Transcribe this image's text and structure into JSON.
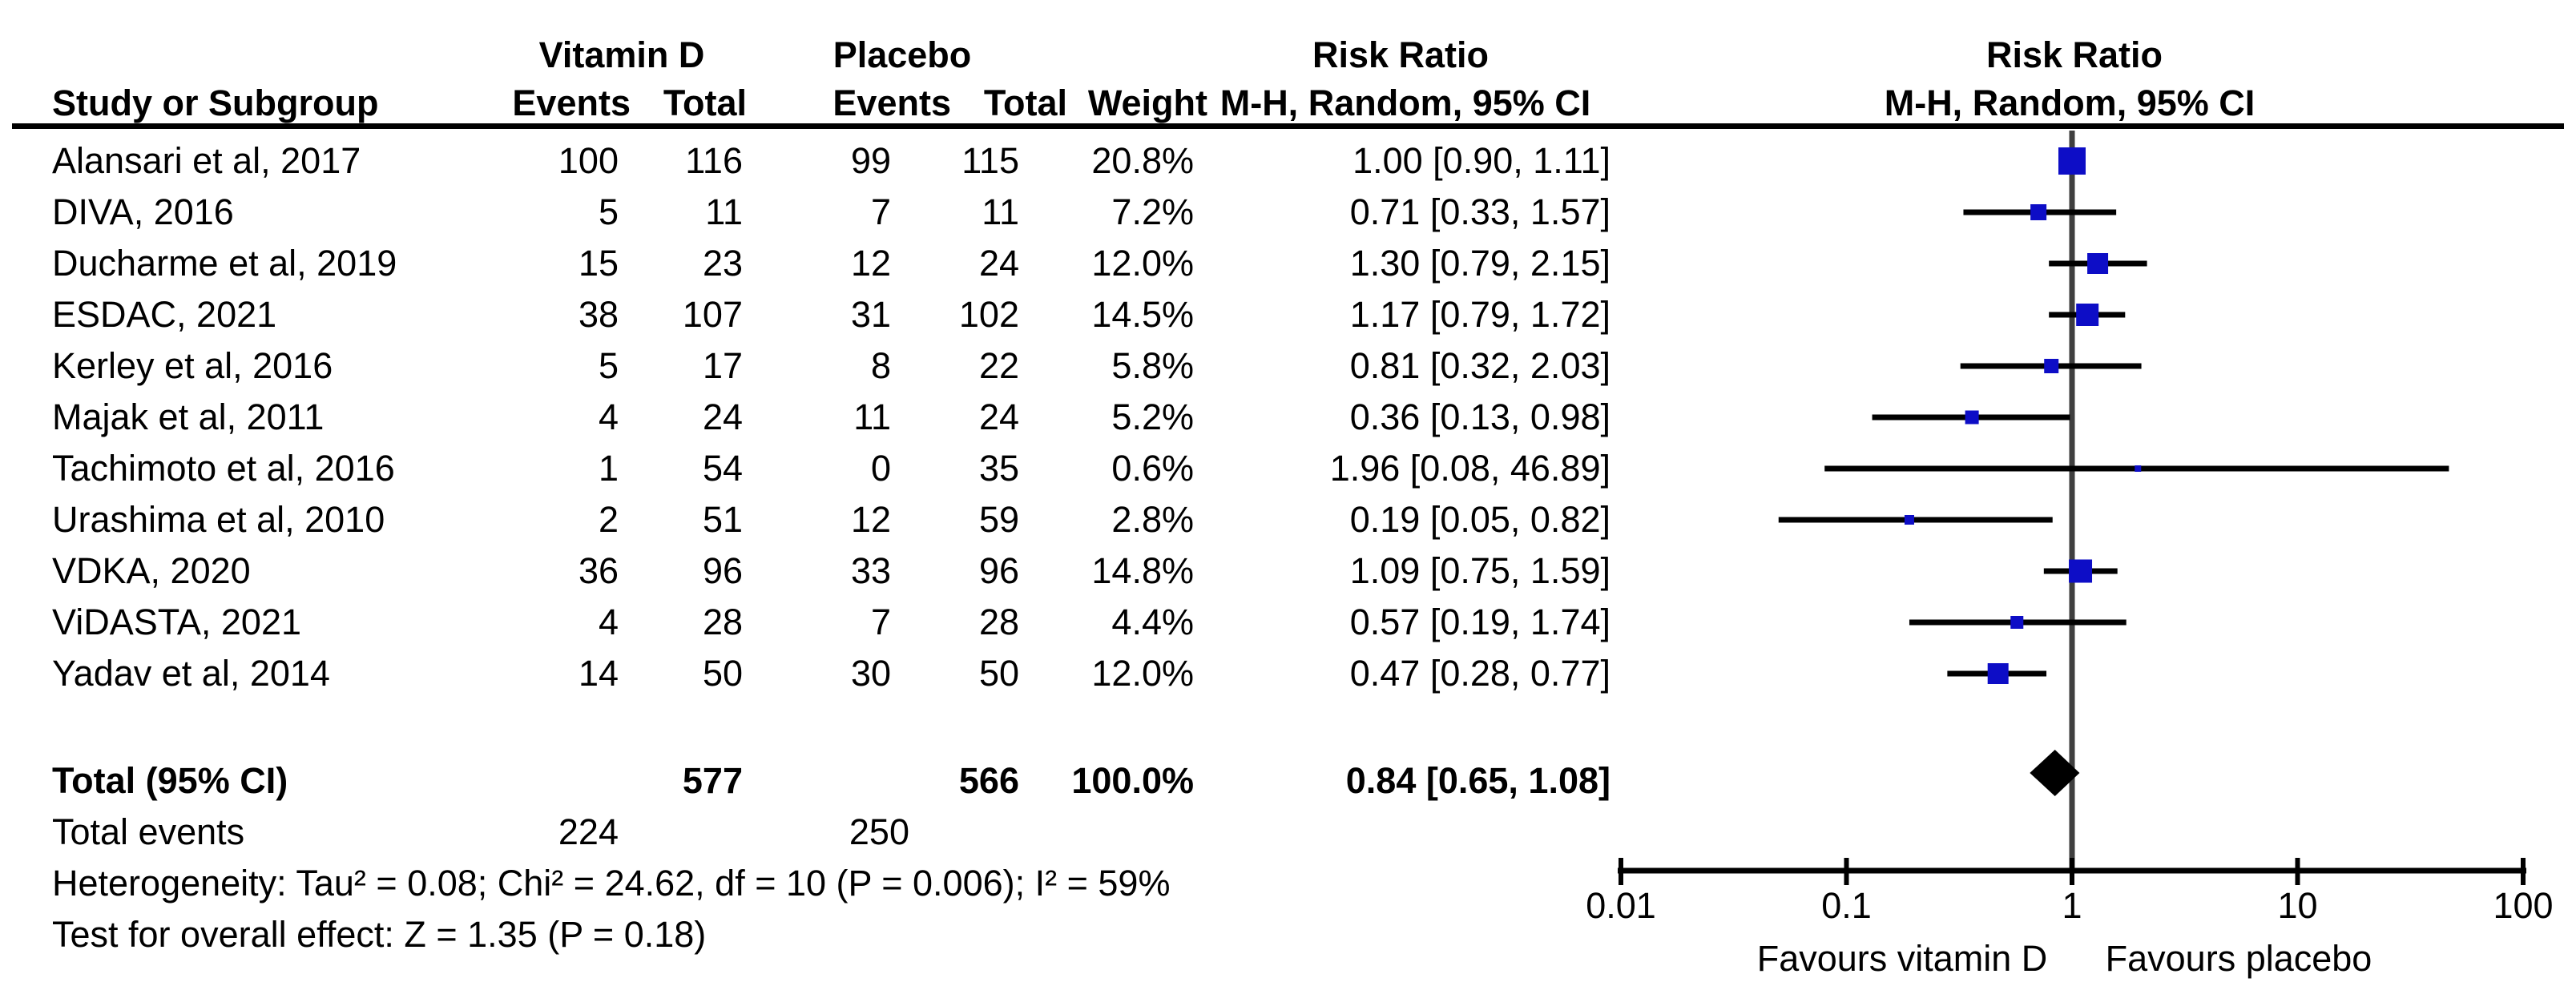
{
  "header": {
    "group1_label": "Vitamin D",
    "group2_label": "Placebo",
    "rr_text_title": "Risk Ratio",
    "rr_text_subtitle": "M-H, Random, 95% CI",
    "rr_plot_title": "Risk Ratio",
    "rr_plot_subtitle": "M-H, Random, 95% CI",
    "col_study": "Study or Subgroup",
    "col_events1": "Events",
    "col_total1": "Total",
    "col_events2": "Events",
    "col_total2": "Total",
    "col_weight": "Weight"
  },
  "studies": [
    {
      "name": "Alansari et al, 2017",
      "events1": "100",
      "total1": "116",
      "events2": "99",
      "total2": "115",
      "weight": "20.8%",
      "weight_num": 20.8,
      "rr_label": "1.00 [0.90, 1.11]",
      "rr": 1.0,
      "lo": 0.9,
      "hi": 1.11
    },
    {
      "name": "DIVA, 2016",
      "events1": "5",
      "total1": "11",
      "events2": "7",
      "total2": "11",
      "weight": "7.2%",
      "weight_num": 7.2,
      "rr_label": "0.71 [0.33, 1.57]",
      "rr": 0.71,
      "lo": 0.33,
      "hi": 1.57
    },
    {
      "name": "Ducharme et al, 2019",
      "events1": "15",
      "total1": "23",
      "events2": "12",
      "total2": "24",
      "weight": "12.0%",
      "weight_num": 12.0,
      "rr_label": "1.30 [0.79, 2.15]",
      "rr": 1.3,
      "lo": 0.79,
      "hi": 2.15
    },
    {
      "name": "ESDAC, 2021",
      "events1": "38",
      "total1": "107",
      "events2": "31",
      "total2": "102",
      "weight": "14.5%",
      "weight_num": 14.5,
      "rr_label": "1.17 [0.79, 1.72]",
      "rr": 1.17,
      "lo": 0.79,
      "hi": 1.72
    },
    {
      "name": "Kerley et al, 2016",
      "events1": "5",
      "total1": "17",
      "events2": "8",
      "total2": "22",
      "weight": "5.8%",
      "weight_num": 5.8,
      "rr_label": "0.81 [0.32, 2.03]",
      "rr": 0.81,
      "lo": 0.32,
      "hi": 2.03
    },
    {
      "name": "Majak et al, 2011",
      "events1": "4",
      "total1": "24",
      "events2": "11",
      "total2": "24",
      "weight": "5.2%",
      "weight_num": 5.2,
      "rr_label": "0.36 [0.13, 0.98]",
      "rr": 0.36,
      "lo": 0.13,
      "hi": 0.98
    },
    {
      "name": "Tachimoto et al, 2016",
      "events1": "1",
      "total1": "54",
      "events2": "0",
      "total2": "35",
      "weight": "0.6%",
      "weight_num": 0.6,
      "rr_label": "1.96 [0.08, 46.89]",
      "rr": 1.96,
      "lo": 0.08,
      "hi": 46.89
    },
    {
      "name": "Urashima et al, 2010",
      "events1": "2",
      "total1": "51",
      "events2": "12",
      "total2": "59",
      "weight": "2.8%",
      "weight_num": 2.8,
      "rr_label": "0.19 [0.05, 0.82]",
      "rr": 0.19,
      "lo": 0.05,
      "hi": 0.82
    },
    {
      "name": "VDKA, 2020",
      "events1": "36",
      "total1": "96",
      "events2": "33",
      "total2": "96",
      "weight": "14.8%",
      "weight_num": 14.8,
      "rr_label": "1.09 [0.75, 1.59]",
      "rr": 1.09,
      "lo": 0.75,
      "hi": 1.59
    },
    {
      "name": "ViDASTA, 2021",
      "events1": "4",
      "total1": "28",
      "events2": "7",
      "total2": "28",
      "weight": "4.4%",
      "weight_num": 4.4,
      "rr_label": "0.57 [0.19, 1.74]",
      "rr": 0.57,
      "lo": 0.19,
      "hi": 1.74
    },
    {
      "name": "Yadav et al, 2014",
      "events1": "14",
      "total1": "50",
      "events2": "30",
      "total2": "50",
      "weight": "12.0%",
      "weight_num": 12.0,
      "rr_label": "0.47 [0.28, 0.77]",
      "rr": 0.47,
      "lo": 0.28,
      "hi": 0.77
    }
  ],
  "totals": {
    "label": "Total (95% CI)",
    "total1": "577",
    "total2": "566",
    "weight": "100.0%",
    "rr_label": "0.84 [0.65, 1.08]",
    "rr": 0.84,
    "lo": 0.65,
    "hi": 1.08,
    "events_label": "Total events",
    "events1": "224",
    "events2": "250"
  },
  "footnotes": {
    "heterogeneity": "Heterogeneity: Tau² = 0.08; Chi² = 24.62, df = 10 (P = 0.006); I² = 59%",
    "overall_effect": "Test for overall effect: Z = 1.35 (P = 0.18)"
  },
  "axis": {
    "tick_labels": [
      "0.01",
      "0.1",
      "1",
      "10",
      "100"
    ],
    "tick_values": [
      0.01,
      0.1,
      1,
      10,
      100
    ],
    "favours_left": "Favours vitamin D",
    "favours_right": "Favours placebo"
  },
  "colors": {
    "square": "#0D0DC6",
    "ci_line": "#000000",
    "center_line": "#3F3F3F",
    "axis": "#000000",
    "diamond": "#000000"
  },
  "chart_data": {
    "type": "scatter",
    "subtype": "forest-plot-risk-ratio",
    "title": "Risk Ratio",
    "method": "M-H, Random, 95% CI",
    "x_scale": "log10",
    "x_ticks": [
      0.01,
      0.1,
      1,
      10,
      100
    ],
    "x_axis_left_label": "Favours vitamin D",
    "x_axis_right_label": "Favours placebo",
    "categories": [
      "Alansari et al, 2017",
      "DIVA, 2016",
      "Ducharme et al, 2019",
      "ESDAC, 2021",
      "Kerley et al, 2016",
      "Majak et al, 2011",
      "Tachimoto et al, 2016",
      "Urashima et al, 2010",
      "VDKA, 2020",
      "ViDASTA, 2021",
      "Yadav et al, 2014"
    ],
    "series": [
      {
        "name": "risk_ratio",
        "values": [
          1.0,
          0.71,
          1.3,
          1.17,
          0.81,
          0.36,
          1.96,
          0.19,
          1.09,
          0.57,
          0.47
        ]
      },
      {
        "name": "ci_lower",
        "values": [
          0.9,
          0.33,
          0.79,
          0.79,
          0.32,
          0.13,
          0.08,
          0.05,
          0.75,
          0.19,
          0.28
        ]
      },
      {
        "name": "ci_upper",
        "values": [
          1.11,
          1.57,
          2.15,
          1.72,
          2.03,
          0.98,
          46.89,
          0.82,
          1.59,
          1.74,
          0.77
        ]
      },
      {
        "name": "weight_pct",
        "values": [
          20.8,
          7.2,
          12.0,
          14.5,
          5.8,
          5.2,
          0.6,
          2.8,
          14.8,
          4.4,
          12.0
        ]
      }
    ],
    "pooled": {
      "rr": 0.84,
      "ci_lower": 0.65,
      "ci_upper": 1.08,
      "marker": "diamond"
    }
  }
}
